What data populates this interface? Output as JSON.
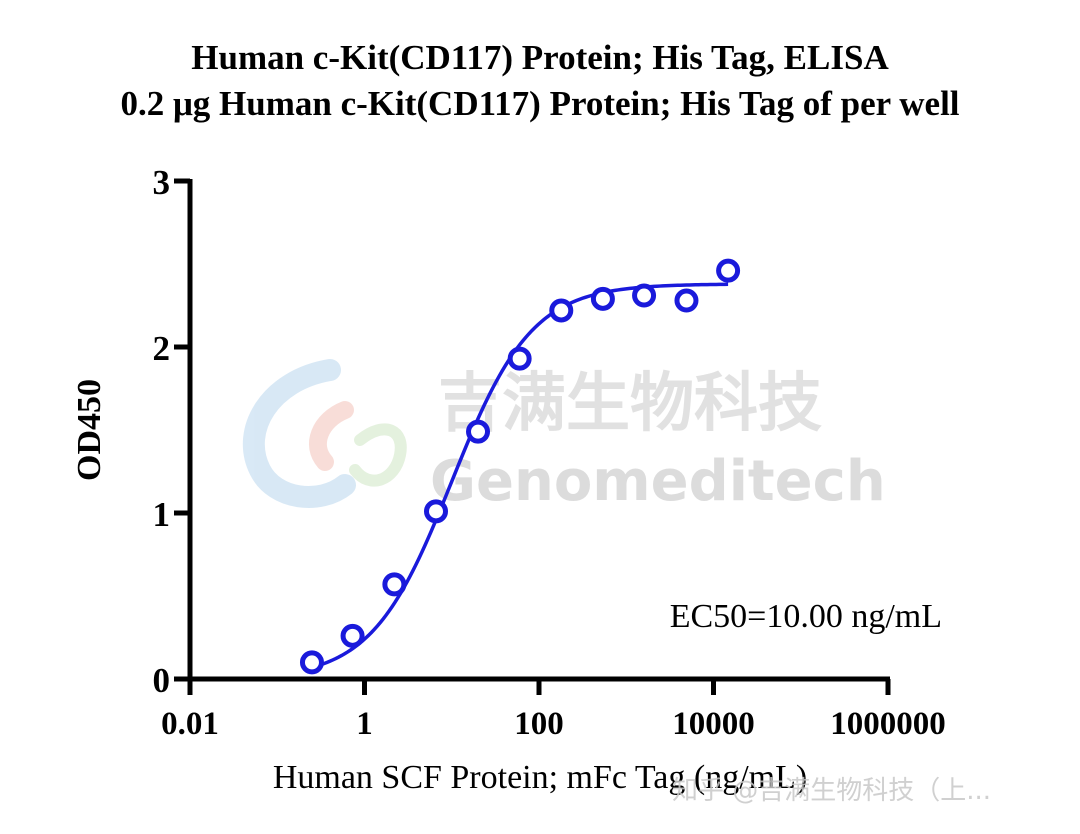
{
  "chart_data": {
    "type": "scatter",
    "title": "Human c-Kit(CD117) Protein; His Tag,  ELISA",
    "subtitle": "0.2 μg Human c-Kit(CD117) Protein; His Tag of per well",
    "xlabel": "Human SCF Protein; mFc Tag (ng/mL)",
    "ylabel": "OD450",
    "xscale": "log",
    "xlim": [
      0.01,
      1000000
    ],
    "ylim": [
      0,
      3
    ],
    "xticks": [
      0.01,
      1,
      100,
      10000,
      1000000
    ],
    "xtick_labels": [
      "0.01",
      "1",
      "100",
      "10000",
      "1000000"
    ],
    "yticks": [
      0,
      1,
      2,
      3
    ],
    "ytick_labels": [
      "0",
      "1",
      "2",
      "3"
    ],
    "annotation": "EC50=10.00 ng/mL",
    "color": "#1a1adb",
    "series": [
      {
        "x": [
          0.25,
          0.73,
          2.2,
          6.6,
          20,
          60,
          180,
          540,
          1600,
          4900,
          14700
        ],
        "y": [
          0.1,
          0.26,
          0.57,
          1.01,
          1.49,
          1.93,
          2.22,
          2.29,
          2.31,
          2.28,
          2.46
        ]
      }
    ],
    "fit": {
      "model": "4PL",
      "bottom": 0.0,
      "top": 2.38,
      "ec50": 10.0,
      "hill": 0.95
    }
  },
  "watermark": {
    "cn": "吉满生物科技",
    "en": "Genomeditech"
  },
  "footer_watermark": "知乎 @吉满生物科技（上..."
}
